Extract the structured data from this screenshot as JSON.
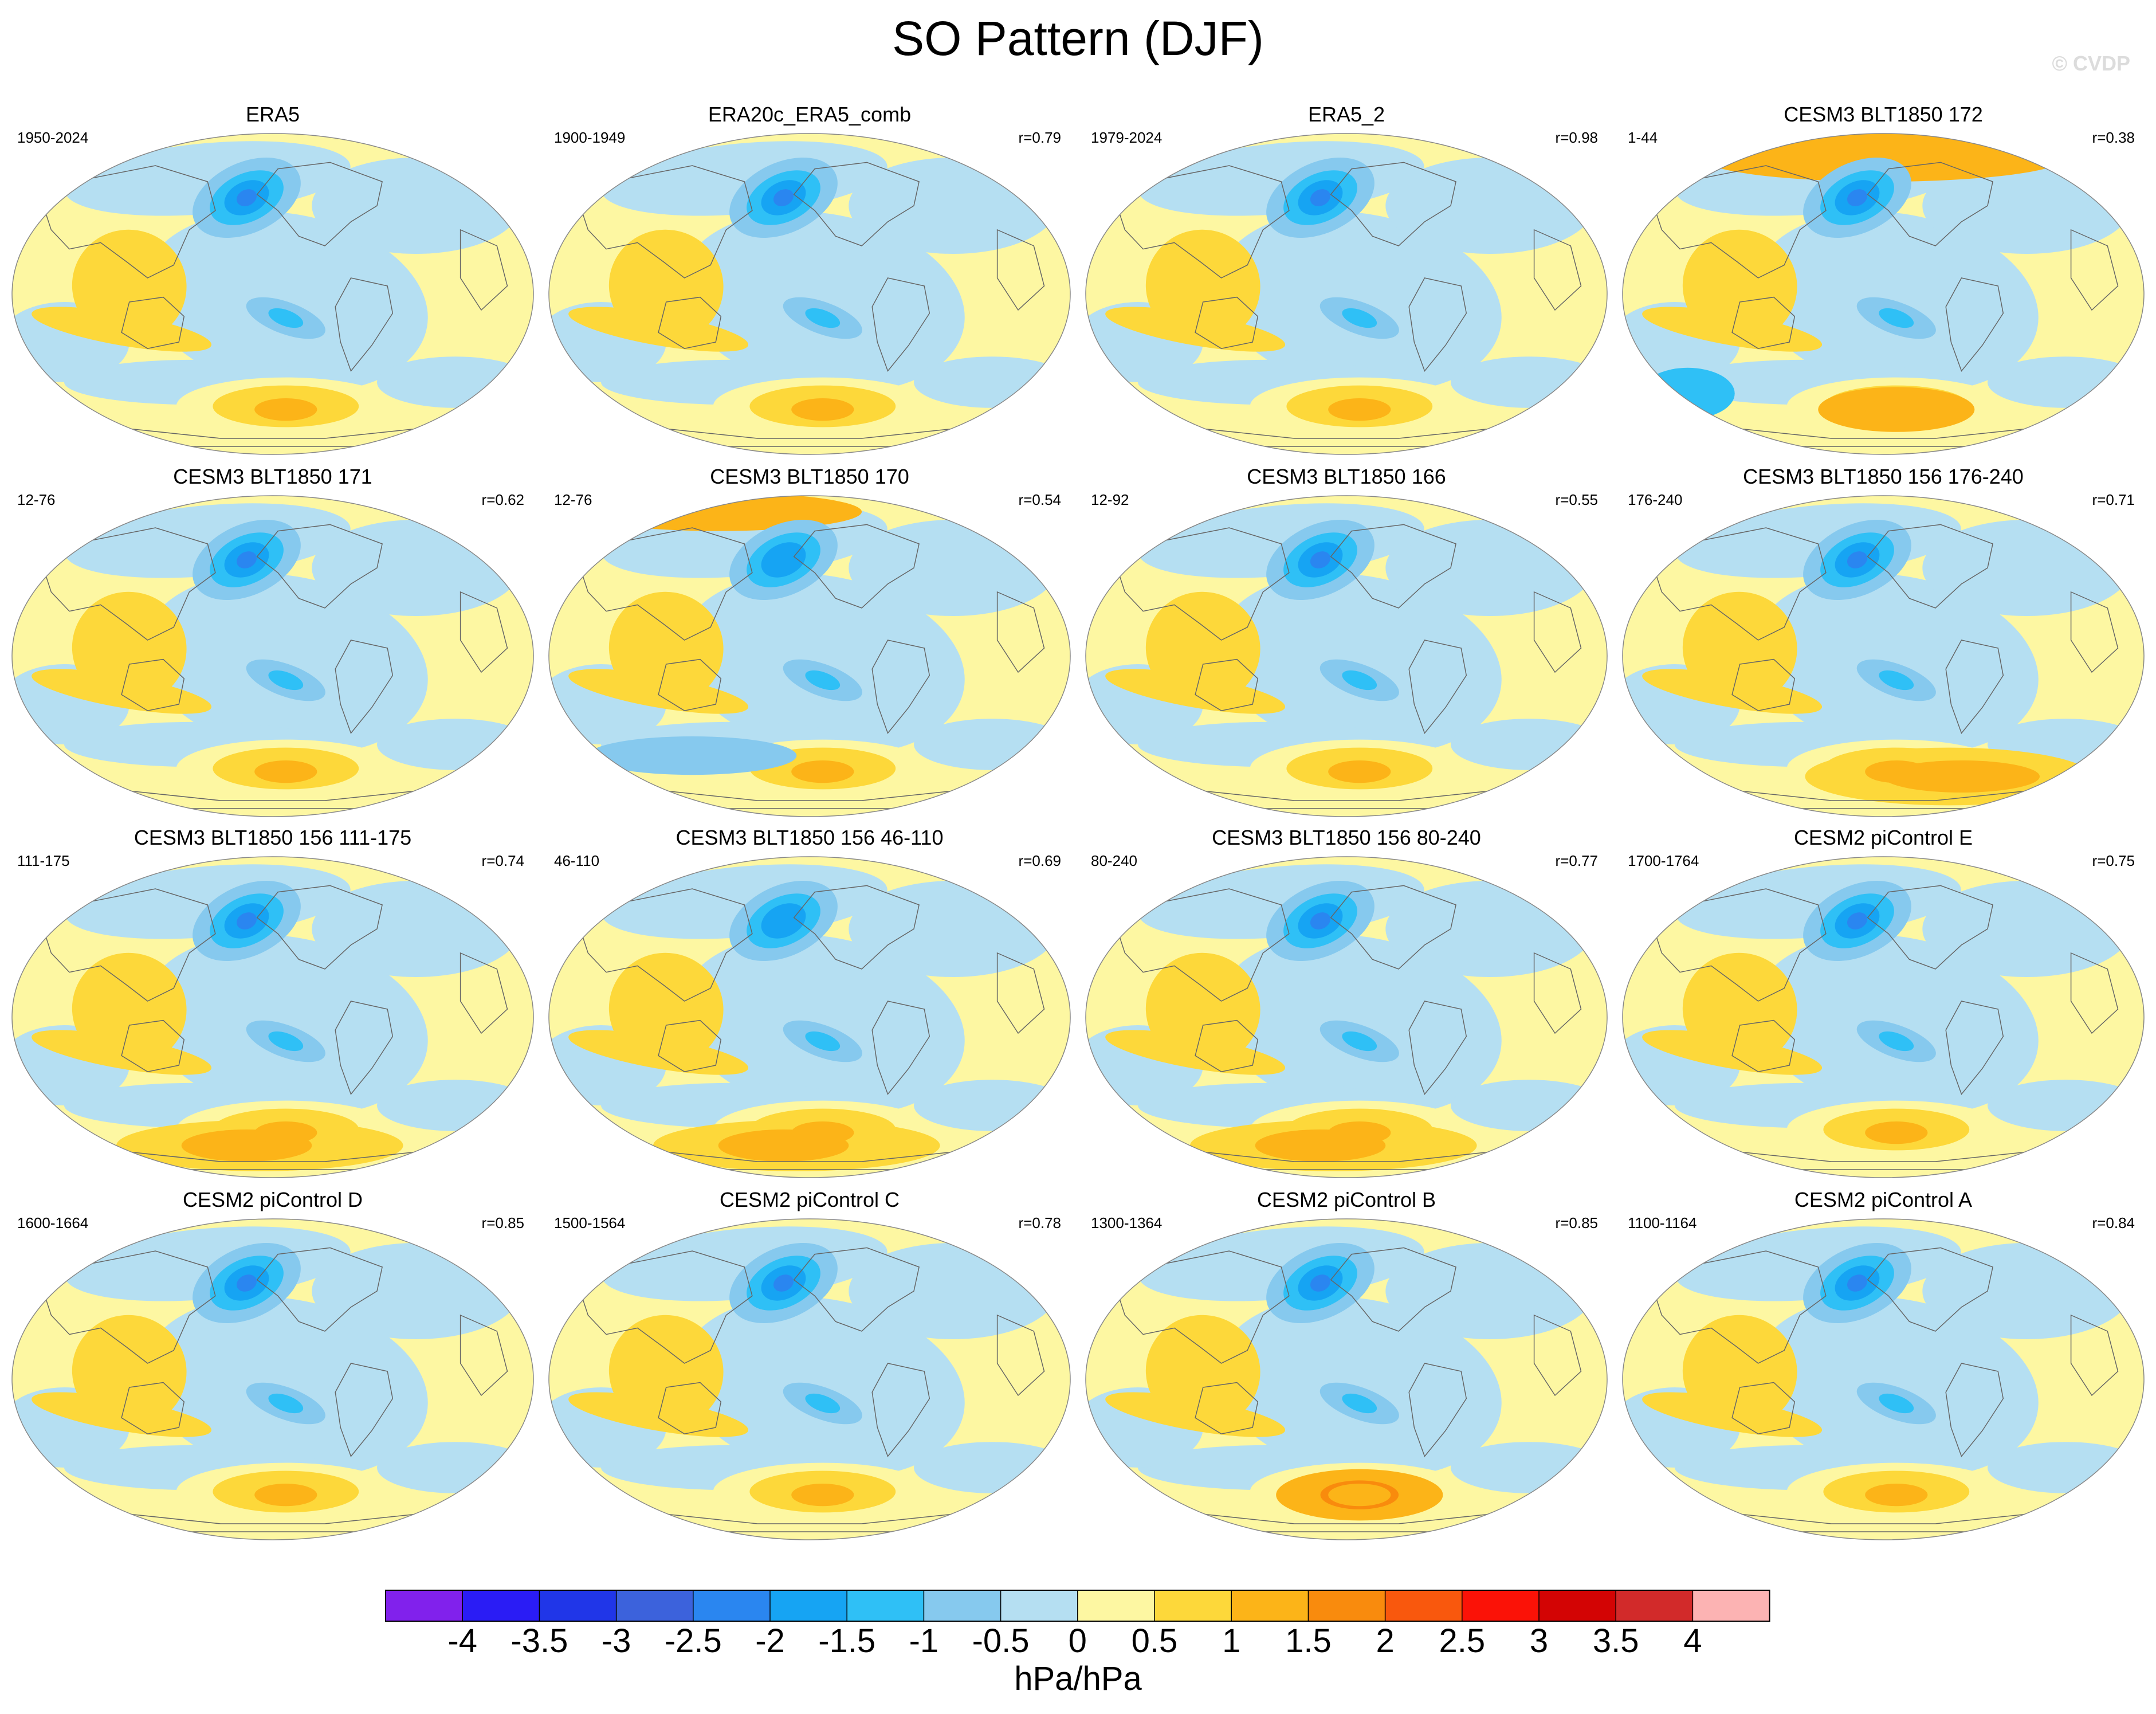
{
  "title": "SO Pattern (DJF)",
  "watermark": "© CVDP",
  "units": "hPa/hPa",
  "chart_data": {
    "type": "contour-map-panels",
    "title": "SO Pattern (DJF)",
    "projection": "Robinson (global)",
    "variable": "SO pattern regression",
    "units": "hPa/hPa",
    "panels": [
      {
        "name": "ERA5",
        "period": "1950-2024",
        "r": ""
      },
      {
        "name": "ERA20c_ERA5_comb",
        "period": "1900-1949",
        "r": "r=0.79"
      },
      {
        "name": "ERA5_2",
        "period": "1979-2024",
        "r": "r=0.98"
      },
      {
        "name": "CESM3 BLT1850 172",
        "period": "1-44",
        "r": "r=0.38"
      },
      {
        "name": "CESM3 BLT1850 171",
        "period": "12-76",
        "r": "r=0.62"
      },
      {
        "name": "CESM3 BLT1850 170",
        "period": "12-76",
        "r": "r=0.54"
      },
      {
        "name": "CESM3 BLT1850 166",
        "period": "12-92",
        "r": "r=0.55"
      },
      {
        "name": "CESM3 BLT1850 156 176-240",
        "period": "176-240",
        "r": "r=0.71"
      },
      {
        "name": "CESM3 BLT1850 156 111-175",
        "period": "111-175",
        "r": "r=0.74"
      },
      {
        "name": "CESM3 BLT1850 156 46-110",
        "period": "46-110",
        "r": "r=0.69"
      },
      {
        "name": "CESM3 BLT1850 156 80-240",
        "period": "80-240",
        "r": "r=0.77"
      },
      {
        "name": "CESM2 piControl E",
        "period": "1700-1764",
        "r": "r=0.75"
      },
      {
        "name": "CESM2 piControl D",
        "period": "1600-1664",
        "r": "r=0.85"
      },
      {
        "name": "CESM2 piControl C",
        "period": "1500-1564",
        "r": "r=0.78"
      },
      {
        "name": "CESM2 piControl B",
        "period": "1300-1364",
        "r": "r=0.85"
      },
      {
        "name": "CESM2 piControl A",
        "period": "1100-1164",
        "r": "r=0.84"
      }
    ],
    "colorbar": {
      "labels": [
        "-4",
        "-3.5",
        "-3",
        "-2.5",
        "-2",
        "-1.5",
        "-1",
        "-0.5",
        "0",
        "0.5",
        "1",
        "1.5",
        "2",
        "2.5",
        "3",
        "3.5",
        "4"
      ],
      "colors": [
        "#8121ec",
        "#2a1cf5",
        "#2036e8",
        "#3c62dc",
        "#2a86f0",
        "#16a4f3",
        "#2fc0f6",
        "#86c9ee",
        "#b5dff2",
        "#fdf7a2",
        "#fdd83a",
        "#fcb418",
        "#f98b0d",
        "#f9580d",
        "#fb1207",
        "#d30404",
        "#d22a2a",
        "#fcb3b3"
      ]
    }
  }
}
